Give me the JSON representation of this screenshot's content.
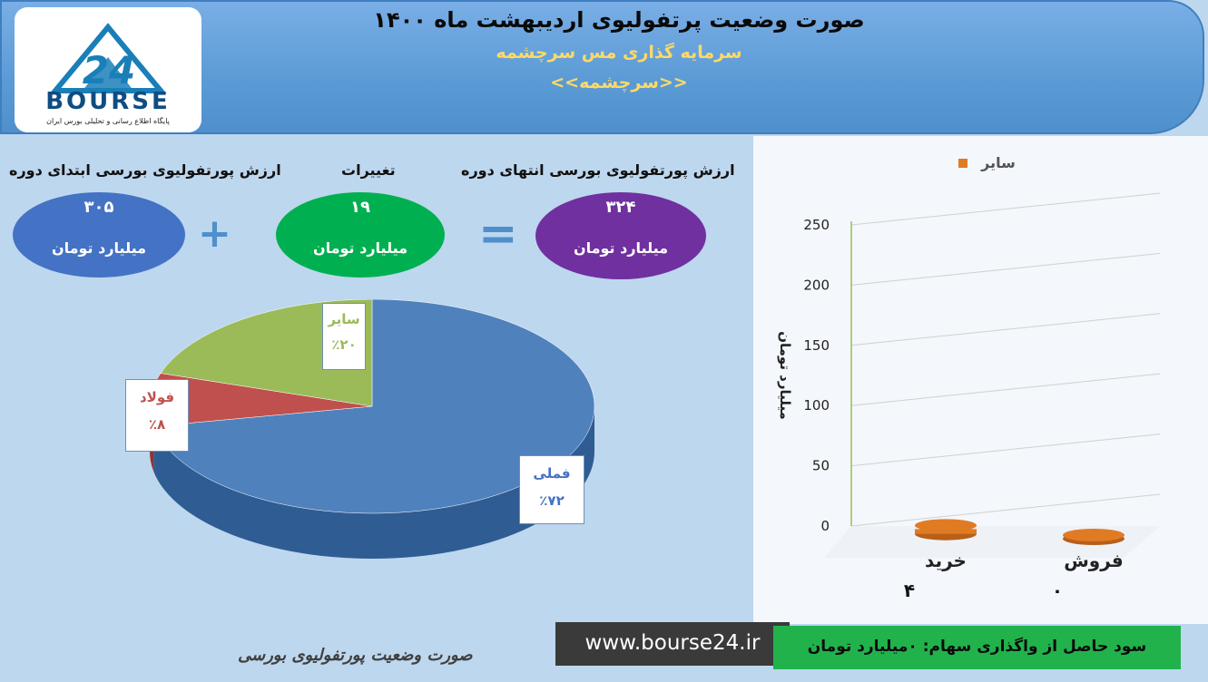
{
  "header": {
    "title": "صورت وضعیت پرتفولیوی اردیبهشت ماه ۱۴۰۰",
    "subtitle": "سرمایه گذاری مس سرچشمه",
    "symbol": "<<سرچشمه>>"
  },
  "logo": {
    "text": "BOURSE",
    "number": "24",
    "tagline": "پایگاه اطلاع رسانی و تحلیلی بورس ایران"
  },
  "summary": {
    "start_label": "ارزش پورتفولیوی بورسی ابتدای دوره",
    "start_value": "۳۰۵",
    "change_label": "تغییرات",
    "change_value": "۱۹",
    "end_label": "ارزش پورتفولیوی بورسی انتهای دوره",
    "end_value": "۳۲۴",
    "unit": "میلیارد تومان",
    "plus": "+",
    "equals": "="
  },
  "colors": {
    "start": "#4472c4",
    "change": "#00b050",
    "end": "#7030a0",
    "pie_main": "#4f81bd",
    "pie_red": "#c0504d",
    "pie_green": "#9bbb59",
    "bar_orange": "#e07b24"
  },
  "chart_data": [
    {
      "type": "pie",
      "categories": [
        "فملی",
        "فولاد",
        "سایر"
      ],
      "values": [
        72,
        8,
        20
      ],
      "labels": [
        "٪۷۲",
        "٪۸",
        "٪۲۰"
      ]
    },
    {
      "type": "bar",
      "legend": [
        "سایر"
      ],
      "categories": [
        "خرید",
        "فروش"
      ],
      "series": [
        {
          "name": "سایر",
          "values": [
            4,
            0
          ]
        }
      ],
      "value_labels": [
        "۴",
        "۰"
      ],
      "ylabel": "میلیارد تومان",
      "ylim": [
        0,
        250
      ],
      "yticks": [
        "0",
        "50",
        "100",
        "150",
        "200",
        "250"
      ]
    }
  ],
  "footer": {
    "caption": "صورت وضعیت پورتفولیوی بورسی",
    "url": "www.bourse24.ir",
    "profit_text": "سود حاصل از واگذاری سهام: ۰میلیارد تومان"
  }
}
